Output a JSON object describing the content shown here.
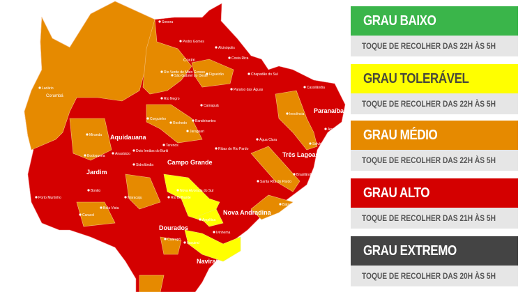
{
  "legend": [
    {
      "title": "GRAU BAIXO",
      "subtitle": "TOQUE DE RECOLHER DAS 22H ÀS 5H",
      "color": "#3ab54a",
      "text_color": "#ffffff"
    },
    {
      "title": "GRAU TOLERÁVEL",
      "subtitle": "TOQUE DE RECOLHER DAS 22H ÀS 5H",
      "color": "#ffff00",
      "text_color": "#4a4a3a"
    },
    {
      "title": "GRAU MÉDIO",
      "subtitle": "TOQUE DE RECOLHER DAS 22H ÀS 5H",
      "color": "#e68a00",
      "text_color": "#ffffff"
    },
    {
      "title": "GRAU ALTO",
      "subtitle": "TOQUE DE RECOLHER DAS 21H ÀS 5H",
      "color": "#d40000",
      "text_color": "#ffffff"
    },
    {
      "title": "GRAU EXTREMO",
      "subtitle": "TOQUE DE RECOLHER DAS 20H ÀS 5H",
      "color": "#444444",
      "text_color": "#ffffff"
    }
  ],
  "map": {
    "colors": {
      "alto": "#d40000",
      "medio": "#e68a00",
      "toleravel": "#ffff00"
    },
    "cities_major": [
      "Campo Grande",
      "Aquidauana",
      "Três Lagoas",
      "Paranaíba",
      "Dourados",
      "Naviraí",
      "Nova Andradina",
      "Jardim",
      "Corumbá",
      "Coxim"
    ],
    "cities_minor": [
      "Ladário",
      "Sonora",
      "Pedro Gomes",
      "Alcinópolis",
      "Costa Rica",
      "Figueirão",
      "Chapadão do Sul",
      "Cassilândia",
      "Paraíso das Águas",
      "Camapuã",
      "São Gabriel do Oeste",
      "Rio Verde de Mato Grosso",
      "Rio Negro",
      "Corguinho",
      "Rochedo",
      "Bandeirantes",
      "Jaraguari",
      "Inocência",
      "Aparecida do Taboado",
      "Selvíria",
      "Água Clara",
      "Ribas do Rio Pardo",
      "Miranda",
      "Bodoquena",
      "Anastácio",
      "Dois Irmãos do Buriti",
      "Terenos",
      "Sidrolândia",
      "Nova Alvorada do Sul",
      "Santa Rita do Pardo",
      "Brasilândia",
      "Bataguassu",
      "Anaurilândia",
      "Angélica",
      "Rio Brilhante",
      "Maracaju",
      "Ivinhema",
      "Bonito",
      "Bela Vista",
      "Caracol",
      "Porto Murtinho",
      "Itaquiraí",
      "Caarapó"
    ]
  }
}
